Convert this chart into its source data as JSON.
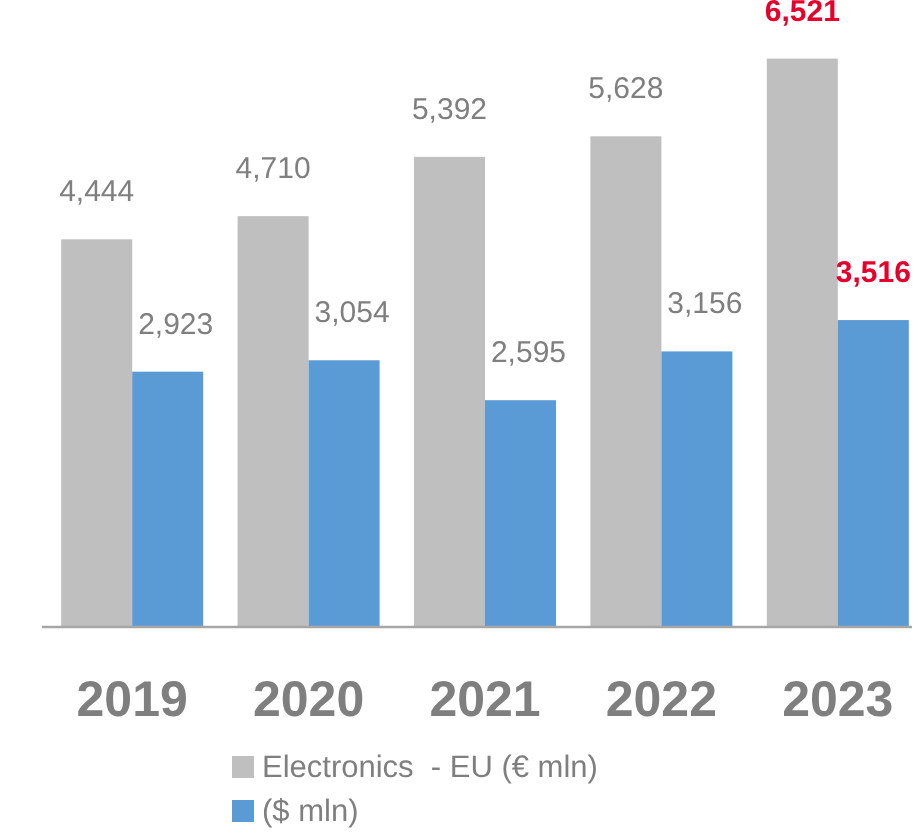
{
  "chart_data": {
    "type": "bar",
    "categories": [
      "2019",
      "2020",
      "2021",
      "2022",
      "2023"
    ],
    "series": [
      {
        "name": "Electronics  - EU (€ mln)",
        "color": "#bfbfbf",
        "values": [
          4444,
          4710,
          5392,
          5628,
          6521
        ],
        "value_labels": [
          "4,444",
          "4,710",
          "5,392",
          "5,628",
          "6,521"
        ]
      },
      {
        "name": "($ mln)",
        "color": "#5b9bd5",
        "values": [
          2923,
          3054,
          2595,
          3156,
          3516
        ],
        "value_labels": [
          "2,923",
          "3,054",
          "2,595",
          "3,156",
          "3,516"
        ]
      }
    ],
    "legend": "bottom"
  }
}
